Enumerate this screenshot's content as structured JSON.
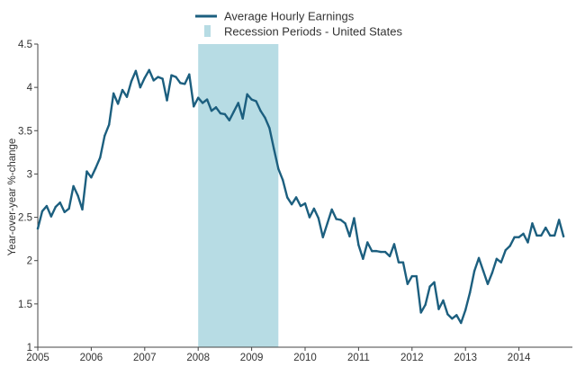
{
  "chart_data": {
    "type": "line",
    "ylabel": "Year-over-year %-change",
    "ylim": [
      1,
      4.5
    ],
    "xlim": [
      "2005-01",
      "2014-12"
    ],
    "y_ticks": [
      "1",
      "1.5",
      "2",
      "2.5",
      "3",
      "3.5",
      "4",
      "4.5"
    ],
    "x_ticks": [
      "2005",
      "2006",
      "2007",
      "2008",
      "2009",
      "2010",
      "2011",
      "2012",
      "2013",
      "2014"
    ],
    "grid": false,
    "legend_position": "top-center",
    "colors": {
      "line": "#1c5f7f",
      "recession": "#b7dce4",
      "axis": "#444444"
    },
    "legend": {
      "line_label": "Average Hourly Earnings",
      "recession_label": "Recession Periods - United States"
    },
    "recession": {
      "start": "2008-01",
      "end": "2009-06"
    },
    "series": [
      {
        "name": "Average Hourly Earnings",
        "points": [
          [
            "2005-01",
            2.37
          ],
          [
            "2005-02",
            2.57
          ],
          [
            "2005-03",
            2.63
          ],
          [
            "2005-04",
            2.51
          ],
          [
            "2005-05",
            2.62
          ],
          [
            "2005-06",
            2.67
          ],
          [
            "2005-07",
            2.56
          ],
          [
            "2005-08",
            2.6
          ],
          [
            "2005-09",
            2.86
          ],
          [
            "2005-10",
            2.75
          ],
          [
            "2005-11",
            2.59
          ],
          [
            "2005-12",
            3.03
          ],
          [
            "2006-01",
            2.96
          ],
          [
            "2006-02",
            3.07
          ],
          [
            "2006-03",
            3.19
          ],
          [
            "2006-04",
            3.44
          ],
          [
            "2006-05",
            3.57
          ],
          [
            "2006-06",
            3.93
          ],
          [
            "2006-07",
            3.81
          ],
          [
            "2006-08",
            3.97
          ],
          [
            "2006-09",
            3.89
          ],
          [
            "2006-10",
            4.07
          ],
          [
            "2006-11",
            4.19
          ],
          [
            "2006-12",
            4.0
          ],
          [
            "2007-01",
            4.11
          ],
          [
            "2007-02",
            4.2
          ],
          [
            "2007-03",
            4.08
          ],
          [
            "2007-04",
            4.12
          ],
          [
            "2007-05",
            4.1
          ],
          [
            "2007-06",
            3.85
          ],
          [
            "2007-07",
            4.14
          ],
          [
            "2007-08",
            4.12
          ],
          [
            "2007-09",
            4.05
          ],
          [
            "2007-10",
            4.04
          ],
          [
            "2007-11",
            4.15
          ],
          [
            "2007-12",
            3.78
          ],
          [
            "2008-01",
            3.88
          ],
          [
            "2008-02",
            3.82
          ],
          [
            "2008-03",
            3.86
          ],
          [
            "2008-04",
            3.73
          ],
          [
            "2008-05",
            3.77
          ],
          [
            "2008-06",
            3.7
          ],
          [
            "2008-07",
            3.69
          ],
          [
            "2008-08",
            3.62
          ],
          [
            "2008-09",
            3.72
          ],
          [
            "2008-10",
            3.82
          ],
          [
            "2008-11",
            3.64
          ],
          [
            "2008-12",
            3.92
          ],
          [
            "2009-01",
            3.86
          ],
          [
            "2009-02",
            3.84
          ],
          [
            "2009-03",
            3.73
          ],
          [
            "2009-04",
            3.65
          ],
          [
            "2009-05",
            3.53
          ],
          [
            "2009-06",
            3.29
          ],
          [
            "2009-07",
            3.06
          ],
          [
            "2009-08",
            2.93
          ],
          [
            "2009-09",
            2.73
          ],
          [
            "2009-10",
            2.65
          ],
          [
            "2009-11",
            2.73
          ],
          [
            "2009-12",
            2.63
          ],
          [
            "2010-01",
            2.66
          ],
          [
            "2010-02",
            2.5
          ],
          [
            "2010-03",
            2.6
          ],
          [
            "2010-04",
            2.49
          ],
          [
            "2010-05",
            2.27
          ],
          [
            "2010-06",
            2.43
          ],
          [
            "2010-07",
            2.59
          ],
          [
            "2010-08",
            2.48
          ],
          [
            "2010-09",
            2.47
          ],
          [
            "2010-10",
            2.43
          ],
          [
            "2010-11",
            2.28
          ],
          [
            "2010-12",
            2.49
          ],
          [
            "2011-01",
            2.18
          ],
          [
            "2011-02",
            2.02
          ],
          [
            "2011-03",
            2.21
          ],
          [
            "2011-04",
            2.11
          ],
          [
            "2011-05",
            2.11
          ],
          [
            "2011-06",
            2.1
          ],
          [
            "2011-07",
            2.1
          ],
          [
            "2011-08",
            2.05
          ],
          [
            "2011-09",
            2.19
          ],
          [
            "2011-10",
            1.98
          ],
          [
            "2011-11",
            1.98
          ],
          [
            "2011-12",
            1.73
          ],
          [
            "2012-01",
            1.82
          ],
          [
            "2012-02",
            1.82
          ],
          [
            "2012-03",
            1.4
          ],
          [
            "2012-04",
            1.49
          ],
          [
            "2012-05",
            1.7
          ],
          [
            "2012-06",
            1.75
          ],
          [
            "2012-07",
            1.44
          ],
          [
            "2012-08",
            1.54
          ],
          [
            "2012-09",
            1.38
          ],
          [
            "2012-10",
            1.33
          ],
          [
            "2012-11",
            1.37
          ],
          [
            "2012-12",
            1.28
          ],
          [
            "2013-01",
            1.43
          ],
          [
            "2013-02",
            1.63
          ],
          [
            "2013-03",
            1.88
          ],
          [
            "2013-04",
            2.03
          ],
          [
            "2013-05",
            1.88
          ],
          [
            "2013-06",
            1.73
          ],
          [
            "2013-07",
            1.86
          ],
          [
            "2013-08",
            2.02
          ],
          [
            "2013-09",
            1.98
          ],
          [
            "2013-10",
            2.12
          ],
          [
            "2013-11",
            2.17
          ],
          [
            "2013-12",
            2.27
          ],
          [
            "2014-01",
            2.27
          ],
          [
            "2014-02",
            2.31
          ],
          [
            "2014-03",
            2.21
          ],
          [
            "2014-04",
            2.43
          ],
          [
            "2014-05",
            2.29
          ],
          [
            "2014-06",
            2.29
          ],
          [
            "2014-07",
            2.38
          ],
          [
            "2014-08",
            2.29
          ],
          [
            "2014-09",
            2.29
          ],
          [
            "2014-10",
            2.47
          ],
          [
            "2014-11",
            2.28
          ]
        ]
      }
    ]
  }
}
